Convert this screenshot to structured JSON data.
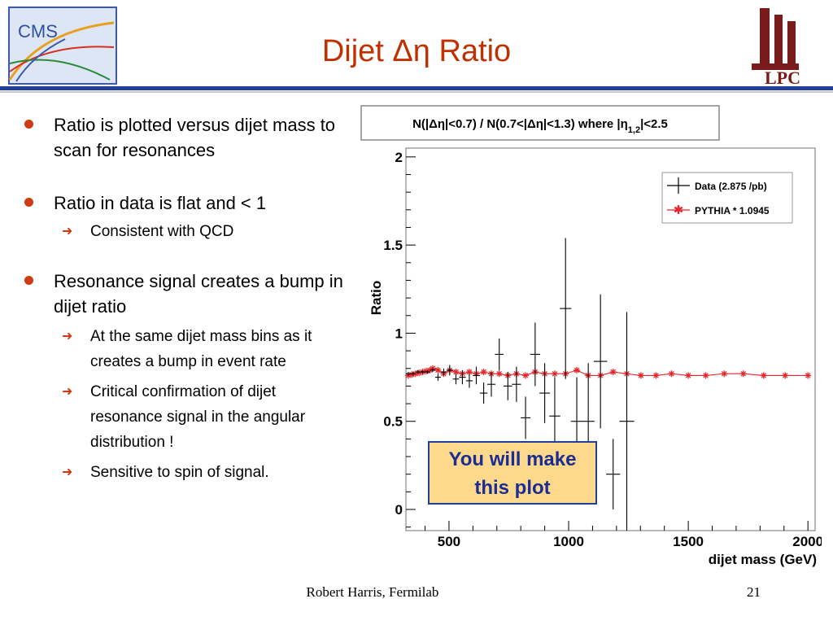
{
  "slide": {
    "title": "Dijet Δη Ratio",
    "cms_logo_text": "CMS",
    "lpc_logo_text": "LPC",
    "footer_author": "Robert Harris, Fermilab",
    "page_number": "21",
    "note": {
      "line1": "You will make",
      "line2": "this plot"
    },
    "colors": {
      "title": "#c03000",
      "rule": "#1f3f98",
      "bullet": "#d03a10",
      "note_bg": "#fed98b",
      "note_text": "#1a2d94"
    }
  },
  "bullets": [
    {
      "text": "Ratio is plotted versus dijet mass to scan for resonances",
      "sub": []
    },
    {
      "text": "Ratio in data is flat and < 1",
      "sub": [
        "Consistent with QCD"
      ]
    },
    {
      "text": "Resonance signal creates a bump in dijet ratio",
      "sub": [
        "At the same dijet mass bins as it creates a bump in event rate",
        "Critical confirmation of dijet resonance signal in the angular distribution !",
        "Sensitive to spin of signal."
      ]
    }
  ],
  "chart_data": {
    "type": "scatter",
    "title": "N(|Δη|<0.7) / N(0.7<|Δη|<1.3) where |η",
    "title_sub": "1,2",
    "title_tail": "|<2.5",
    "xlabel": "dijet mass (GeV)",
    "ylabel": "Ratio",
    "xlim": [
      320,
      2030
    ],
    "ylim": [
      -0.12,
      2.05
    ],
    "x_ticks": [
      500,
      1000,
      1500,
      2000
    ],
    "y_ticks": [
      0,
      0.5,
      1,
      1.5,
      2
    ],
    "y_tick_labels": [
      "0",
      "0.5",
      "1",
      "1.5",
      "2"
    ],
    "grid": false,
    "legend_position": "top-right",
    "series": [
      {
        "name": "Data (2.875 /pb)",
        "color": "#000000",
        "marker": "cross-errorbar",
        "points": [
          {
            "x": 330,
            "xerr": 10,
            "y": 0.77,
            "yerr": 0.01
          },
          {
            "x": 350,
            "xerr": 10,
            "y": 0.77,
            "yerr": 0.01
          },
          {
            "x": 370,
            "xerr": 10,
            "y": 0.78,
            "yerr": 0.01
          },
          {
            "x": 390,
            "xerr": 10,
            "y": 0.78,
            "yerr": 0.01
          },
          {
            "x": 410,
            "xerr": 11,
            "y": 0.78,
            "yerr": 0.01
          },
          {
            "x": 432,
            "xerr": 11,
            "y": 0.79,
            "yerr": 0.01
          },
          {
            "x": 454,
            "xerr": 12,
            "y": 0.75,
            "yerr": 0.02
          },
          {
            "x": 478,
            "xerr": 12,
            "y": 0.78,
            "yerr": 0.02
          },
          {
            "x": 503,
            "xerr": 13,
            "y": 0.79,
            "yerr": 0.03
          },
          {
            "x": 529,
            "xerr": 13,
            "y": 0.74,
            "yerr": 0.03
          },
          {
            "x": 556,
            "xerr": 14,
            "y": 0.75,
            "yerr": 0.04
          },
          {
            "x": 585,
            "xerr": 14,
            "y": 0.73,
            "yerr": 0.04
          },
          {
            "x": 614,
            "xerr": 15,
            "y": 0.76,
            "yerr": 0.05
          },
          {
            "x": 645,
            "xerr": 16,
            "y": 0.66,
            "yerr": 0.06
          },
          {
            "x": 677,
            "xerr": 17,
            "y": 0.71,
            "yerr": 0.07
          },
          {
            "x": 710,
            "xerr": 18,
            "y": 0.88,
            "yerr": 0.09
          },
          {
            "x": 746,
            "xerr": 18,
            "y": 0.7,
            "yerr": 0.08
          },
          {
            "x": 782,
            "xerr": 19,
            "y": 0.71,
            "yerr": 0.1
          },
          {
            "x": 820,
            "xerr": 20,
            "y": 0.52,
            "yerr": 0.12
          },
          {
            "x": 860,
            "xerr": 21,
            "y": 0.88,
            "yerr": 0.18
          },
          {
            "x": 900,
            "xerr": 22,
            "y": 0.66,
            "yerr": 0.17
          },
          {
            "x": 942,
            "xerr": 23,
            "y": 0.53,
            "yerr": 0.22
          },
          {
            "x": 987,
            "xerr": 24,
            "y": 1.14,
            "yerr": 0.4
          },
          {
            "x": 1034,
            "xerr": 25,
            "y": 0.5,
            "yerr": 0.25
          },
          {
            "x": 1082,
            "xerr": 26,
            "y": 0.5,
            "yerr": 0.33
          },
          {
            "x": 1133,
            "xerr": 28,
            "y": 0.84,
            "yerr": 0.38
          },
          {
            "x": 1186,
            "xerr": 29,
            "y": 0.2,
            "yerr": 0.2
          },
          {
            "x": 1243,
            "xerr": 31,
            "y": 0.5,
            "yerr": 0.62
          }
        ]
      },
      {
        "name": "PYTHIA * 1.0945",
        "color": "#e8252a",
        "marker": "star",
        "points": [
          {
            "x": 330,
            "y": 0.76
          },
          {
            "x": 345,
            "y": 0.765
          },
          {
            "x": 360,
            "y": 0.77
          },
          {
            "x": 375,
            "y": 0.775
          },
          {
            "x": 390,
            "y": 0.78
          },
          {
            "x": 405,
            "y": 0.785
          },
          {
            "x": 420,
            "y": 0.79
          },
          {
            "x": 432,
            "y": 0.8
          },
          {
            "x": 454,
            "y": 0.79
          },
          {
            "x": 478,
            "y": 0.77
          },
          {
            "x": 503,
            "y": 0.79
          },
          {
            "x": 529,
            "y": 0.78
          },
          {
            "x": 556,
            "y": 0.77
          },
          {
            "x": 585,
            "y": 0.78
          },
          {
            "x": 614,
            "y": 0.77
          },
          {
            "x": 645,
            "y": 0.78
          },
          {
            "x": 677,
            "y": 0.77
          },
          {
            "x": 710,
            "y": 0.77
          },
          {
            "x": 746,
            "y": 0.76
          },
          {
            "x": 782,
            "y": 0.77
          },
          {
            "x": 820,
            "y": 0.76
          },
          {
            "x": 860,
            "y": 0.78
          },
          {
            "x": 900,
            "y": 0.77
          },
          {
            "x": 942,
            "y": 0.77
          },
          {
            "x": 987,
            "y": 0.77
          },
          {
            "x": 1034,
            "y": 0.79
          },
          {
            "x": 1082,
            "y": 0.76
          },
          {
            "x": 1133,
            "y": 0.76
          },
          {
            "x": 1186,
            "y": 0.78
          },
          {
            "x": 1243,
            "y": 0.77
          },
          {
            "x": 1302,
            "y": 0.76
          },
          {
            "x": 1365,
            "y": 0.76
          },
          {
            "x": 1430,
            "y": 0.77
          },
          {
            "x": 1500,
            "y": 0.76
          },
          {
            "x": 1573,
            "y": 0.76
          },
          {
            "x": 1650,
            "y": 0.77
          },
          {
            "x": 1730,
            "y": 0.77
          },
          {
            "x": 1815,
            "y": 0.76
          },
          {
            "x": 1905,
            "y": 0.76
          },
          {
            "x": 2000,
            "y": 0.76
          }
        ]
      }
    ]
  }
}
